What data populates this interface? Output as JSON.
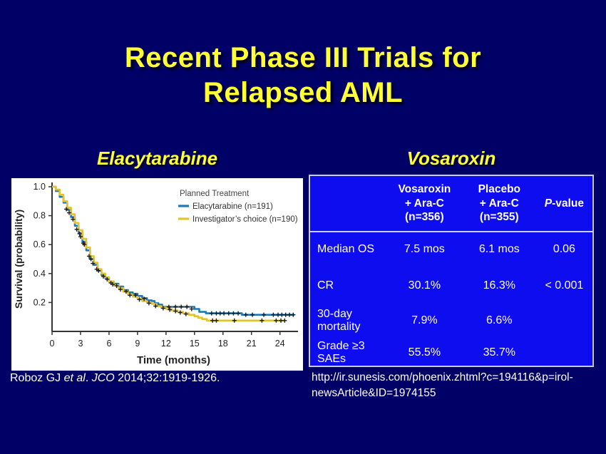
{
  "theme": {
    "background": "#000066",
    "title_yellow": "#ffff33",
    "table_blue": "#0d0df0",
    "table_border": "#ccccee",
    "text_white": "#ffffff"
  },
  "slide": {
    "title": {
      "line1": "Recent Phase III Trials for",
      "line2": "Relapsed AML"
    },
    "left_section": {
      "heading": "Elacytarabine",
      "citation": {
        "plain1": "Roboz GJ ",
        "italic1": "et al",
        "plain2": ". ",
        "italic2": "JCO",
        "plain3": " 2014;32:1919-1926."
      }
    },
    "right_section": {
      "heading": "Vosaroxin",
      "citation_line1": "http://ir.sunesis.com/phoenix.zhtml?c=194116&p=irol-",
      "citation_line2": "newsArticle&ID=1974155"
    }
  },
  "table": {
    "header": {
      "col0": "",
      "col1": "Vosaroxin\n+ Ara-C\n(n=356)",
      "col2": "Placebo\n+ Ara-C\n(n=355)",
      "pvalue_italic": "P",
      "pvalue_rest": "-value"
    },
    "rows": [
      {
        "label": "Median OS",
        "v1": "7.5 mos",
        "v2": "6.1 mos",
        "p": "0.06"
      },
      {
        "label": "CR",
        "v1": "30.1%",
        "v2": "16.3%",
        "p": "< 0.001"
      },
      {
        "label": "30-day\nmortality",
        "v1": "7.9%",
        "v2": "6.6%",
        "p": ""
      },
      {
        "label": "Grade ≥3\nSAEs",
        "v1": "55.5%",
        "v2": "35.7%",
        "p": ""
      }
    ]
  },
  "chart_data": {
    "type": "line",
    "subtype": "kaplan-meier-step",
    "title": "",
    "xlabel": "Time (months)",
    "ylabel": "Survival (probability)",
    "xlim": [
      0,
      25.6
    ],
    "ylim": [
      0,
      1.0
    ],
    "xticks": [
      0,
      3,
      6,
      9,
      12,
      15,
      18,
      21,
      24
    ],
    "yticks": [
      0.2,
      0.4,
      0.6,
      0.8,
      1.0
    ],
    "grid": false,
    "legend_position": "upper right",
    "legend_title": "Planned Treatment",
    "series": [
      {
        "name": "Elacytarabine  (n=191)",
        "color": "#1f78b4",
        "points": [
          [
            0,
            1.0
          ],
          [
            0.4,
            0.97
          ],
          [
            0.8,
            0.93
          ],
          [
            1.2,
            0.89
          ],
          [
            1.6,
            0.84
          ],
          [
            2.0,
            0.79
          ],
          [
            2.4,
            0.73
          ],
          [
            2.8,
            0.68
          ],
          [
            3.2,
            0.62
          ],
          [
            3.6,
            0.56
          ],
          [
            4.0,
            0.5
          ],
          [
            4.4,
            0.46
          ],
          [
            4.8,
            0.42
          ],
          [
            5.2,
            0.39
          ],
          [
            5.6,
            0.37
          ],
          [
            6.0,
            0.345
          ],
          [
            6.5,
            0.33
          ],
          [
            7.0,
            0.31
          ],
          [
            7.5,
            0.285
          ],
          [
            8.0,
            0.27
          ],
          [
            8.5,
            0.26
          ],
          [
            9.0,
            0.245
          ],
          [
            9.5,
            0.23
          ],
          [
            10.0,
            0.215
          ],
          [
            10.5,
            0.21
          ],
          [
            10.8,
            0.195
          ],
          [
            11.2,
            0.185
          ],
          [
            11.6,
            0.17
          ],
          [
            15.0,
            0.155
          ],
          [
            15.5,
            0.135
          ],
          [
            16.2,
            0.125
          ],
          [
            20.0,
            0.115
          ],
          [
            25.5,
            0.115
          ]
        ],
        "censors": [
          [
            1.5,
            0.845
          ],
          [
            1.8,
            0.82
          ],
          [
            2.6,
            0.705
          ],
          [
            3.0,
            0.655
          ],
          [
            3.3,
            0.61
          ],
          [
            3.9,
            0.52
          ],
          [
            4.3,
            0.47
          ],
          [
            4.7,
            0.43
          ],
          [
            5.4,
            0.38
          ],
          [
            6.2,
            0.335
          ],
          [
            6.8,
            0.315
          ],
          [
            7.8,
            0.275
          ],
          [
            8.8,
            0.25
          ],
          [
            9.7,
            0.225
          ],
          [
            12.3,
            0.17
          ],
          [
            13.0,
            0.17
          ],
          [
            13.6,
            0.17
          ],
          [
            14.2,
            0.17
          ],
          [
            14.7,
            0.155
          ],
          [
            16.8,
            0.125
          ],
          [
            17.3,
            0.125
          ],
          [
            17.7,
            0.125
          ],
          [
            18.1,
            0.125
          ],
          [
            18.6,
            0.125
          ],
          [
            19.1,
            0.125
          ],
          [
            19.6,
            0.125
          ],
          [
            20.4,
            0.115
          ],
          [
            21.1,
            0.115
          ],
          [
            22.3,
            0.115
          ],
          [
            23.3,
            0.115
          ],
          [
            23.8,
            0.115
          ],
          [
            24.2,
            0.115
          ],
          [
            24.6,
            0.115
          ],
          [
            25.0,
            0.115
          ],
          [
            25.4,
            0.115
          ]
        ]
      },
      {
        "name": "Investigator’s choice  (n=190)",
        "color": "#e2c32f",
        "points": [
          [
            0,
            1.0
          ],
          [
            0.4,
            0.98
          ],
          [
            0.8,
            0.945
          ],
          [
            1.2,
            0.9
          ],
          [
            1.6,
            0.855
          ],
          [
            2.0,
            0.81
          ],
          [
            2.4,
            0.75
          ],
          [
            2.8,
            0.7
          ],
          [
            3.2,
            0.64
          ],
          [
            3.6,
            0.58
          ],
          [
            4.0,
            0.52
          ],
          [
            4.4,
            0.475
          ],
          [
            4.8,
            0.43
          ],
          [
            5.2,
            0.4
          ],
          [
            5.6,
            0.375
          ],
          [
            6.0,
            0.345
          ],
          [
            6.5,
            0.32
          ],
          [
            7.0,
            0.3
          ],
          [
            7.5,
            0.275
          ],
          [
            8.0,
            0.255
          ],
          [
            8.5,
            0.24
          ],
          [
            9.0,
            0.225
          ],
          [
            9.5,
            0.21
          ],
          [
            10.0,
            0.2
          ],
          [
            10.5,
            0.19
          ],
          [
            11.0,
            0.175
          ],
          [
            11.5,
            0.165
          ],
          [
            12.0,
            0.155
          ],
          [
            12.6,
            0.145
          ],
          [
            13.2,
            0.135
          ],
          [
            13.8,
            0.125
          ],
          [
            14.4,
            0.115
          ],
          [
            15.0,
            0.105
          ],
          [
            15.4,
            0.095
          ],
          [
            15.8,
            0.085
          ],
          [
            16.3,
            0.075
          ],
          [
            24.5,
            0.075
          ]
        ],
        "censors": [
          [
            2.2,
            0.775
          ],
          [
            2.9,
            0.675
          ],
          [
            3.4,
            0.6
          ],
          [
            4.1,
            0.5
          ],
          [
            4.9,
            0.42
          ],
          [
            5.8,
            0.36
          ],
          [
            6.4,
            0.325
          ],
          [
            7.2,
            0.29
          ],
          [
            8.2,
            0.25
          ],
          [
            9.2,
            0.22
          ],
          [
            10.2,
            0.195
          ],
          [
            10.9,
            0.175
          ],
          [
            11.7,
            0.16
          ],
          [
            12.4,
            0.15
          ],
          [
            13.0,
            0.14
          ],
          [
            13.5,
            0.13
          ],
          [
            14.1,
            0.12
          ],
          [
            16.9,
            0.075
          ],
          [
            17.3,
            0.075
          ],
          [
            19.2,
            0.075
          ],
          [
            22.1,
            0.075
          ],
          [
            23.6,
            0.075
          ],
          [
            24.1,
            0.075
          ],
          [
            24.5,
            0.075
          ]
        ]
      }
    ]
  }
}
